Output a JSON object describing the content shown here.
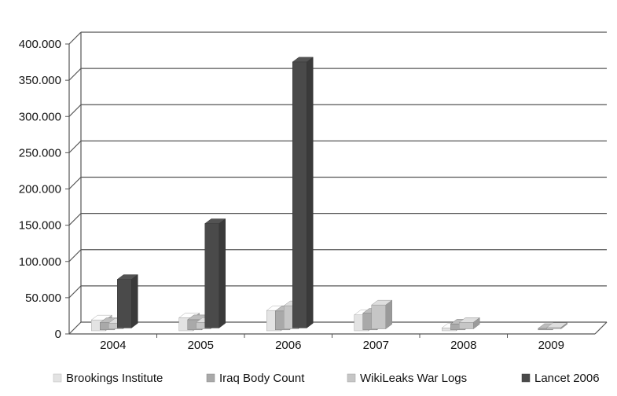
{
  "chart_data": {
    "type": "bar",
    "title": "",
    "xlabel": "",
    "ylabel": "",
    "categories": [
      "2004",
      "2005",
      "2006",
      "2007",
      "2008",
      "2009"
    ],
    "ylim": [
      0,
      400000
    ],
    "y_ticks": [
      "0",
      "50.000",
      "100.000",
      "150.000",
      "200.000",
      "250.000",
      "300.000",
      "350.000",
      "400.000"
    ],
    "grid": true,
    "legend_position": "bottom",
    "series": [
      {
        "name": "Brookings Institute",
        "color": "#e3e3e3",
        "values": [
          15000,
          18000,
          28000,
          22000,
          4000,
          0
        ]
      },
      {
        "name": "Iraq Body Count",
        "color": "#a9a9a9",
        "values": [
          10000,
          14000,
          26000,
          23000,
          8000,
          2000
        ]
      },
      {
        "name": "WikiLeaks War Logs",
        "color": "#c6c6c6",
        "values": [
          8000,
          9000,
          32000,
          33000,
          9000,
          2000
        ]
      },
      {
        "name": "Lancet 2006",
        "color": "#4a4a4a",
        "values": [
          67000,
          144000,
          367000,
          0,
          0,
          0
        ]
      }
    ]
  }
}
